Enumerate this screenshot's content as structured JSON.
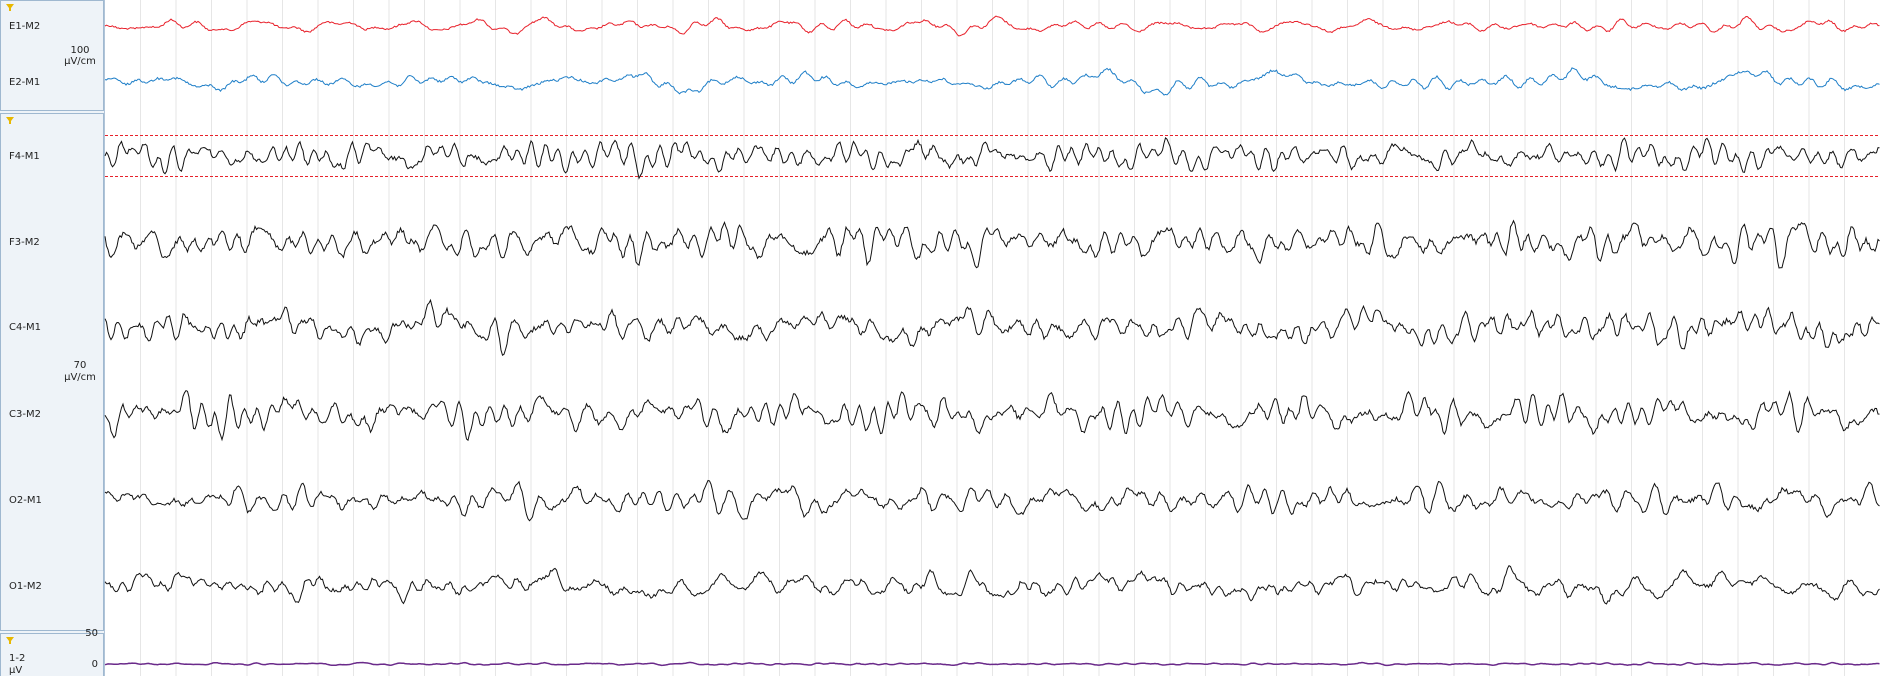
{
  "groups": [
    {
      "scale": {
        "value": "100",
        "unit": "µV/cm"
      },
      "channels": [
        {
          "label": "E1-M2",
          "color": "#e8212b"
        },
        {
          "label": "E2-M1",
          "color": "#1f7fc8"
        }
      ]
    },
    {
      "scale": {
        "value": "70",
        "unit": "µV/cm"
      },
      "channels": [
        {
          "label": "F4-M1",
          "color": "#111111"
        },
        {
          "label": "F3-M2",
          "color": "#111111"
        },
        {
          "label": "C4-M1",
          "color": "#111111"
        },
        {
          "label": "C3-M2",
          "color": "#111111"
        },
        {
          "label": "O2-M1",
          "color": "#111111"
        },
        {
          "label": "O1-M2",
          "color": "#111111"
        }
      ]
    },
    {
      "axis_ticks": [
        "50",
        "0"
      ],
      "unit": "µV",
      "channels": [
        {
          "label": "1-2",
          "color": "#6a2a8a"
        }
      ]
    }
  ]
}
